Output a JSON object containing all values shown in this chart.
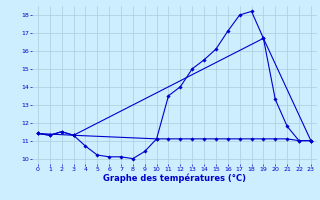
{
  "xlabel": "Graphe des températures (°C)",
  "background_color": "#cceeff",
  "grid_color": "#aaccdd",
  "line_color": "#0000cc",
  "xlim": [
    -0.5,
    23.5
  ],
  "ylim": [
    9.7,
    18.5
  ],
  "yticks": [
    10,
    11,
    12,
    13,
    14,
    15,
    16,
    17,
    18
  ],
  "xticks": [
    0,
    1,
    2,
    3,
    4,
    5,
    6,
    7,
    8,
    9,
    10,
    11,
    12,
    13,
    14,
    15,
    16,
    17,
    18,
    19,
    20,
    21,
    22,
    23
  ],
  "line1_x": [
    0,
    1,
    2,
    3,
    4,
    5,
    6,
    7,
    8,
    9,
    10,
    11,
    12,
    13,
    14,
    15,
    16,
    17,
    18,
    19,
    20,
    21,
    22,
    23
  ],
  "line1_y": [
    11.4,
    11.3,
    11.5,
    11.3,
    10.7,
    10.2,
    10.1,
    10.1,
    10.0,
    10.4,
    11.1,
    13.5,
    14.0,
    15.0,
    15.5,
    16.1,
    17.1,
    18.0,
    18.2,
    16.7,
    13.3,
    11.8,
    11.0,
    11.0
  ],
  "line2_x": [
    0,
    1,
    2,
    3,
    10,
    11,
    12,
    13,
    14,
    15,
    16,
    17,
    18,
    19,
    20,
    21,
    22,
    23
  ],
  "line2_y": [
    11.4,
    11.3,
    11.5,
    11.3,
    11.1,
    11.1,
    11.1,
    11.1,
    11.1,
    11.1,
    11.1,
    11.1,
    11.1,
    11.1,
    11.1,
    11.1,
    11.0,
    11.0
  ],
  "line3_x": [
    0,
    3,
    19,
    23
  ],
  "line3_y": [
    11.4,
    11.3,
    16.7,
    11.0
  ],
  "tick_fontsize": 4.5,
  "xlabel_fontsize": 6
}
